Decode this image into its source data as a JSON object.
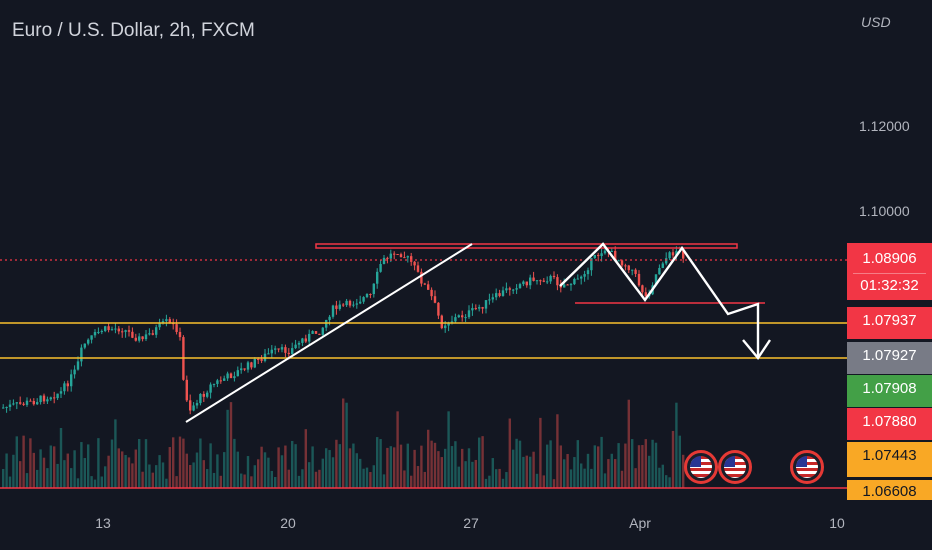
{
  "header": {
    "symbol_title": "Euro / U.S. Dollar, 2h, FXCM",
    "currency": "USD"
  },
  "price_axis": {
    "ticks": [
      "1.12000",
      "1.10000"
    ]
  },
  "time_axis": {
    "ticks": [
      "13",
      "20",
      "27",
      "Apr",
      "10"
    ]
  },
  "badges": {
    "last_price": "1.08906",
    "countdown": "01:32:32",
    "levels": [
      "1.07937",
      "1.07927",
      "1.07908",
      "1.07880",
      "1.07443",
      "1.06608"
    ]
  },
  "events": {
    "flag_icons": [
      "us-flag-icon",
      "us-flag-icon",
      "us-flag-icon"
    ]
  },
  "colors": {
    "background": "#131722",
    "bull": "#26a69a",
    "bear": "#ef5350",
    "resistance_line": "#f23645",
    "support_line": "#f9c02c",
    "drawing": "#ffffff",
    "badge_red": "#f23645",
    "badge_gray": "#787b86",
    "badge_green": "#43a047",
    "badge_yellow": "#f9a825"
  }
}
